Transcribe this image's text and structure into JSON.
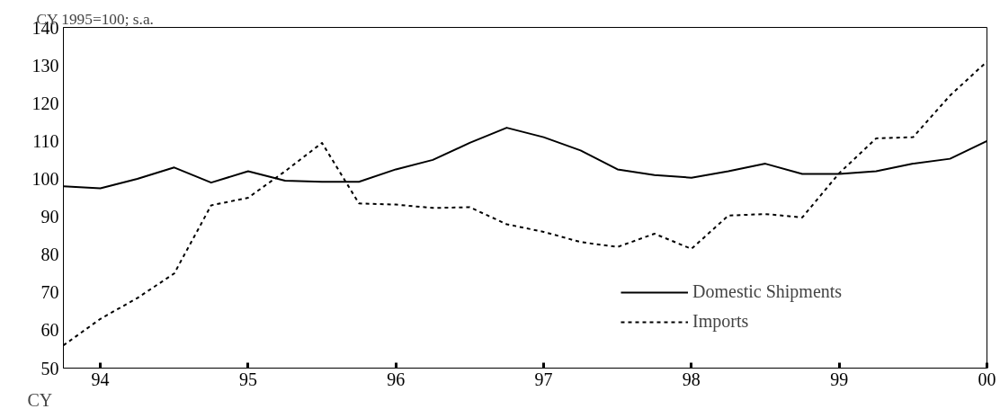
{
  "chart_data": {
    "type": "line",
    "ylabel": "CY 1995=100; s.a.",
    "xlabel": "CY",
    "x": [
      1993.75,
      1994.0,
      1994.25,
      1994.5,
      1994.75,
      1995.0,
      1995.25,
      1995.5,
      1995.75,
      1996.0,
      1996.25,
      1996.5,
      1996.75,
      1997.0,
      1997.25,
      1997.5,
      1997.75,
      1998.0,
      1998.25,
      1998.5,
      1998.75,
      1999.0,
      1999.25,
      1999.5,
      1999.75,
      2000.0
    ],
    "series": [
      {
        "name": "Domestic Shipments",
        "color": "#000000",
        "line_style": "solid",
        "values": [
          98,
          97.5,
          100,
          103,
          99,
          102,
          99.5,
          99.2,
          99.2,
          102.5,
          105,
          109.5,
          113.5,
          111,
          107.5,
          102.5,
          101,
          100.3,
          102,
          104,
          101.3,
          101.3,
          102,
          104,
          105.3,
          110
        ]
      },
      {
        "name": "Imports",
        "color": "#000000",
        "line_style": "dotted",
        "values": [
          56,
          63,
          68.5,
          75,
          93,
          95,
          102,
          109.5,
          93.5,
          93.2,
          92.3,
          92.5,
          88,
          86,
          83.3,
          82,
          85.5,
          81.5,
          90.3,
          90.7,
          89.8,
          101.5,
          110.7,
          111,
          122,
          131
        ]
      }
    ],
    "xlim": [
      1993.75,
      2000.0
    ],
    "xticks": [
      {
        "value": 1994.0,
        "label": "94"
      },
      {
        "value": 1995.0,
        "label": "95"
      },
      {
        "value": 1996.0,
        "label": "96"
      },
      {
        "value": 1997.0,
        "label": "97"
      },
      {
        "value": 1998.0,
        "label": "98"
      },
      {
        "value": 1999.0,
        "label": "99"
      },
      {
        "value": 2000.0,
        "label": "00"
      }
    ],
    "ylim": [
      50,
      140
    ],
    "yticks": [
      50,
      60,
      70,
      80,
      90,
      100,
      110,
      120,
      130,
      140
    ],
    "grid": false,
    "legend": "bottom right",
    "marker": "none"
  }
}
